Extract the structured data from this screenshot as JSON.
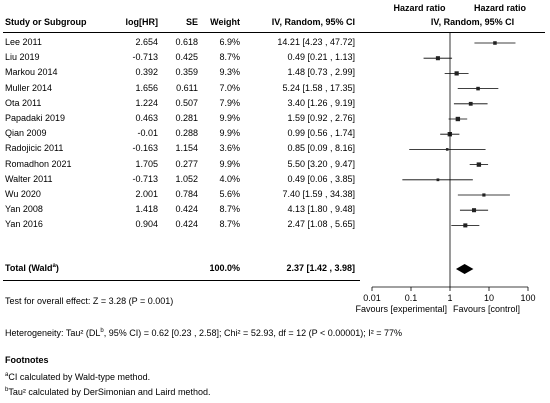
{
  "table": {
    "headers": {
      "study": "Study or Subgroup",
      "loghr": "log[HR]",
      "se": "SE",
      "weight": "Weight",
      "ci_line1": "Hazard ratio",
      "ci_line2": "IV, Random, 95% CI",
      "plot_line1": "Hazard ratio",
      "plot_line2": "IV, Random, 95% CI"
    },
    "total": {
      "label": "Total (Wald",
      "label_sup": "a",
      "label_close": ")",
      "weight": "100.0%",
      "ci": "2.37 [1.42 , 3.98]"
    },
    "overall_effect": "Test for overall effect: Z = 3.28 (P = 0.001)",
    "heterogeneity": {
      "part1": "Heterogeneity: Tau² (DL",
      "sup": "b",
      "part2": ", 95% CI) = 0.62 [0.23 , 2.58]; Chi² = 52.93, df = 12 (P < 0.00001); I² = 77%"
    }
  },
  "footnotes": {
    "title": "Footnotes",
    "a": {
      "sup": "a",
      "text": "CI calculated by Wald-type method."
    },
    "b": {
      "sup": "b",
      "text": "Tau² calculated by DerSimonian and Laird method."
    }
  },
  "chart_data": {
    "type": "forest",
    "scale": "log",
    "xlim": [
      0.01,
      100
    ],
    "null_line": 1,
    "ticks": [
      0.01,
      0.1,
      1,
      10,
      100
    ],
    "tick_labels": [
      "0.01",
      "0.1",
      "1",
      "10",
      "100"
    ],
    "favours_left": "Favours [experimental]",
    "favours_right": "Favours [control]",
    "studies": [
      {
        "name": "Lee 2011",
        "loghr": "2.654",
        "se": "0.618",
        "weight": "6.9%",
        "ci_text": "14.21 [4.23 , 47.72]",
        "hr": 14.21,
        "lo": 4.23,
        "hi": 47.72,
        "w": 6.9
      },
      {
        "name": "Liu 2019",
        "loghr": "-0.713",
        "se": "0.425",
        "weight": "8.7%",
        "ci_text": "0.49 [0.21 , 1.13]",
        "hr": 0.49,
        "lo": 0.21,
        "hi": 1.13,
        "w": 8.7
      },
      {
        "name": "Markou 2014",
        "loghr": "0.392",
        "se": "0.359",
        "weight": "9.3%",
        "ci_text": "1.48 [0.73 , 2.99]",
        "hr": 1.48,
        "lo": 0.73,
        "hi": 2.99,
        "w": 9.3
      },
      {
        "name": "Muller 2014",
        "loghr": "1.656",
        "se": "0.611",
        "weight": "7.0%",
        "ci_text": "5.24 [1.58 , 17.35]",
        "hr": 5.24,
        "lo": 1.58,
        "hi": 17.35,
        "w": 7.0
      },
      {
        "name": "Ota 2011",
        "loghr": "1.224",
        "se": "0.507",
        "weight": "7.9%",
        "ci_text": "3.40 [1.26 , 9.19]",
        "hr": 3.4,
        "lo": 1.26,
        "hi": 9.19,
        "w": 7.9
      },
      {
        "name": "Papadaki 2019",
        "loghr": "0.463",
        "se": "0.281",
        "weight": "9.9%",
        "ci_text": "1.59 [0.92 , 2.76]",
        "hr": 1.59,
        "lo": 0.92,
        "hi": 2.76,
        "w": 9.9
      },
      {
        "name": "Qian 2009",
        "loghr": "-0.01",
        "se": "0.288",
        "weight": "9.9%",
        "ci_text": "0.99 [0.56 , 1.74]",
        "hr": 0.99,
        "lo": 0.56,
        "hi": 1.74,
        "w": 9.9
      },
      {
        "name": "Radojicic 2011",
        "loghr": "-0.163",
        "se": "1.154",
        "weight": "3.6%",
        "ci_text": "0.85 [0.09 , 8.16]",
        "hr": 0.85,
        "lo": 0.09,
        "hi": 8.16,
        "w": 3.6
      },
      {
        "name": "Romadhon 2021",
        "loghr": "1.705",
        "se": "0.277",
        "weight": "9.9%",
        "ci_text": "5.50 [3.20 , 9.47]",
        "hr": 5.5,
        "lo": 3.2,
        "hi": 9.47,
        "w": 9.9
      },
      {
        "name": "Walter 2011",
        "loghr": "-0.713",
        "se": "1.052",
        "weight": "4.0%",
        "ci_text": "0.49 [0.06 , 3.85]",
        "hr": 0.49,
        "lo": 0.06,
        "hi": 3.85,
        "w": 4.0
      },
      {
        "name": "Wu 2020",
        "loghr": "2.001",
        "se": "0.784",
        "weight": "5.6%",
        "ci_text": "7.40 [1.59 , 34.38]",
        "hr": 7.4,
        "lo": 1.59,
        "hi": 34.38,
        "w": 5.6
      },
      {
        "name": "Yan 2008",
        "loghr": "1.418",
        "se": "0.424",
        "weight": "8.7%",
        "ci_text": "4.13 [1.80 , 9.48]",
        "hr": 4.13,
        "lo": 1.8,
        "hi": 9.48,
        "w": 8.7
      },
      {
        "name": "Yan 2016",
        "loghr": "0.904",
        "se": "0.424",
        "weight": "8.7%",
        "ci_text": "2.47 [1.08 , 5.65]",
        "hr": 2.47,
        "lo": 1.08,
        "hi": 5.65,
        "w": 8.7
      }
    ],
    "pooled": {
      "hr": 2.37,
      "lo": 1.42,
      "hi": 3.98
    }
  }
}
